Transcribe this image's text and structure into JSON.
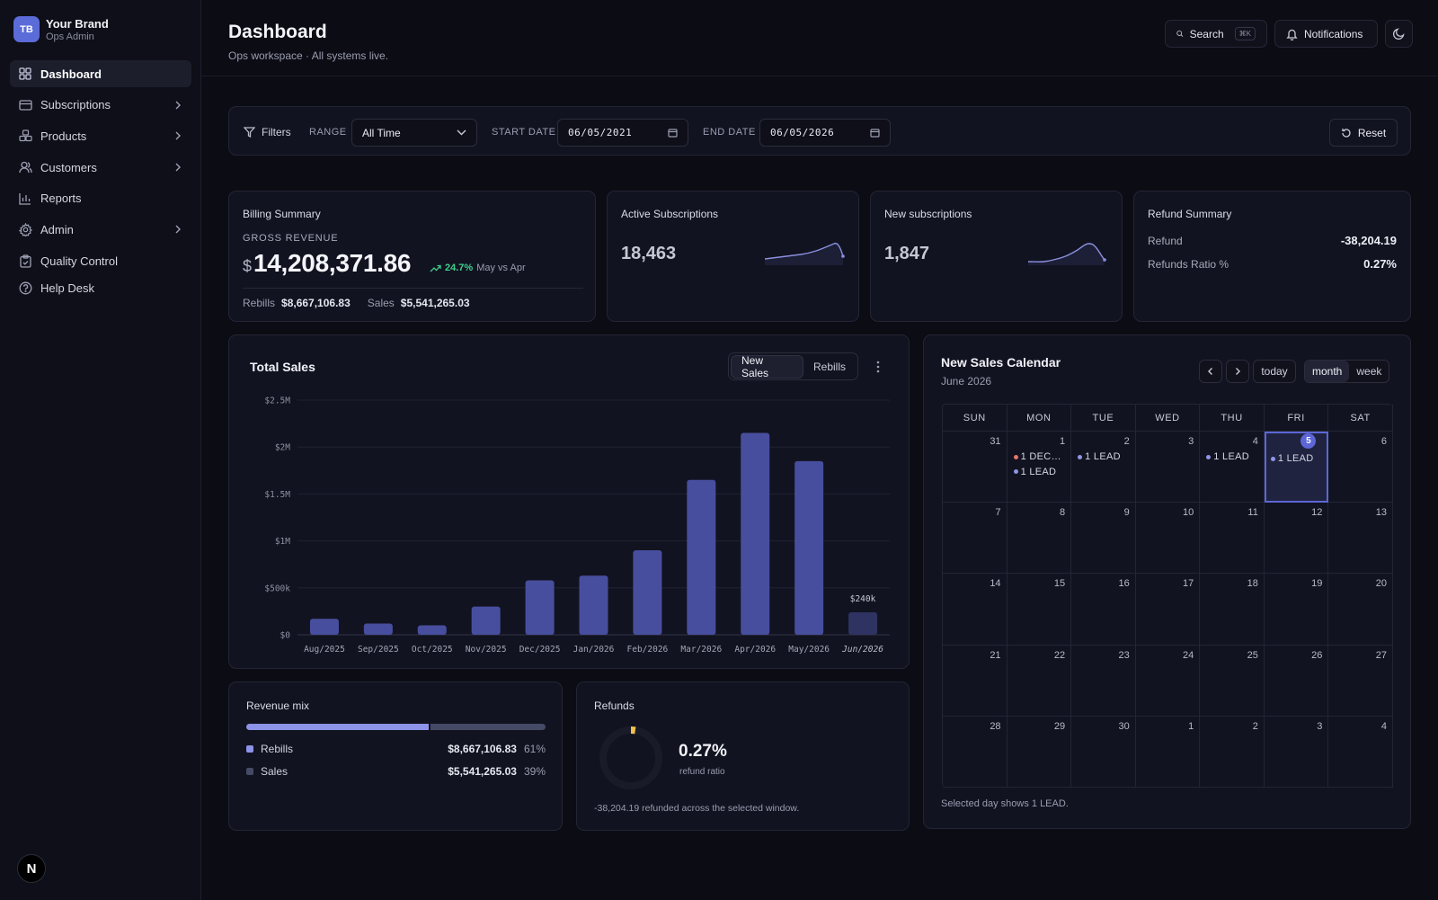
{
  "brand": {
    "logo": "TB",
    "name": "Your Brand",
    "role": "Ops Admin"
  },
  "sidebar": {
    "items": [
      {
        "label": "Dashboard",
        "icon": "dashboard-icon"
      },
      {
        "label": "Subscriptions",
        "icon": "card-icon"
      },
      {
        "label": "Products",
        "icon": "boxes-icon"
      },
      {
        "label": "Customers",
        "icon": "users-icon"
      },
      {
        "label": "Reports",
        "icon": "bar-chart-icon"
      },
      {
        "label": "Admin",
        "icon": "gear-icon"
      },
      {
        "label": "Quality Control",
        "icon": "clipboard-icon"
      },
      {
        "label": "Help Desk",
        "icon": "help-icon"
      }
    ],
    "footer_badge": "N"
  },
  "header": {
    "title": "Dashboard",
    "subtitle": "Ops workspace · All systems live.",
    "search_label": "Search",
    "search_shortcut": "⌘K",
    "notifications_label": "Notifications"
  },
  "filters": {
    "label": "Filters",
    "range_label": "RANGE",
    "range_value": "All Time",
    "start_label": "START DATE",
    "start_value": "06/05/2021",
    "end_label": "END DATE",
    "end_value": "06/05/2026",
    "reset_label": "Reset"
  },
  "billing": {
    "title": "Billing Summary",
    "gross_label": "GROSS REVENUE",
    "currency": "$",
    "gross_value": "14,208,371.86",
    "change": "24.7%",
    "change_note": "May vs Apr",
    "rebills_label": "Rebills",
    "rebills_value": "$8,667,106.83",
    "sales_label": "Sales",
    "sales_value": "$5,541,265.03"
  },
  "active_subs": {
    "title": "Active Subscriptions",
    "value": "18,463"
  },
  "new_subs": {
    "title": "New subscriptions",
    "value": "1,847"
  },
  "refund_summary": {
    "title": "Refund Summary",
    "refund_label": "Refund",
    "refund_value": "-38,204.19",
    "ratio_label": "Refunds Ratio %",
    "ratio_value": "0.27%"
  },
  "total_sales": {
    "title": "Total Sales",
    "tab_new": "New Sales",
    "tab_rebills": "Rebills"
  },
  "chart_data": {
    "type": "bar",
    "title": "Total Sales",
    "categories": [
      "Aug/2025",
      "Sep/2025",
      "Oct/2025",
      "Nov/2025",
      "Dec/2025",
      "Jan/2026",
      "Feb/2026",
      "Mar/2026",
      "Apr/2026",
      "May/2026",
      "Jun/2026"
    ],
    "values": [
      170000,
      120000,
      100000,
      300000,
      580000,
      630000,
      900000,
      1650000,
      2150000,
      1850000,
      240000
    ],
    "ylim": [
      0,
      2500000
    ],
    "yticks": [
      {
        "v": 0,
        "label": "$0"
      },
      {
        "v": 500000,
        "label": "$500k"
      },
      {
        "v": 1000000,
        "label": "$1M"
      },
      {
        "v": 1500000,
        "label": "$1.5M"
      },
      {
        "v": 2000000,
        "label": "$2M"
      },
      {
        "v": 2500000,
        "label": "$2.5M"
      }
    ],
    "annotations": [
      {
        "category": "Jun/2026",
        "label": "$240k"
      }
    ],
    "colors": {
      "bar": "#484e9e",
      "current": "#2f3362"
    },
    "grid": true
  },
  "calendar": {
    "title": "New Sales Calendar",
    "month": "June 2026",
    "today_label": "today",
    "month_label": "month",
    "week_label": "week",
    "weekdays": [
      "SUN",
      "MON",
      "TUE",
      "WED",
      "THU",
      "FRI",
      "SAT"
    ],
    "days": [
      "31",
      "1",
      "2",
      "3",
      "4",
      "5",
      "6",
      "7",
      "8",
      "9",
      "10",
      "11",
      "12",
      "13",
      "14",
      "15",
      "16",
      "17",
      "18",
      "19",
      "20",
      "21",
      "22",
      "23",
      "24",
      "25",
      "26",
      "27",
      "28",
      "29",
      "30",
      "1",
      "2",
      "3",
      "4"
    ],
    "selected_index": 5,
    "events": [
      {
        "day_index": 1,
        "items": [
          {
            "text": "1 DEC…",
            "color": "#e8756a"
          },
          {
            "text": "1 LEAD",
            "color": "#8f96e6"
          }
        ]
      },
      {
        "day_index": 2,
        "items": [
          {
            "text": "1 LEAD",
            "color": "#8f96e6"
          }
        ]
      },
      {
        "day_index": 4,
        "items": [
          {
            "text": "1 LEAD",
            "color": "#8f96e6"
          }
        ]
      },
      {
        "day_index": 5,
        "items": [
          {
            "text": "1 LEAD",
            "color": "#8f96e6"
          }
        ]
      }
    ],
    "footer": "Selected day shows 1 LEAD."
  },
  "revenue_mix": {
    "title": "Revenue mix",
    "rebills_label": "Rebills",
    "rebills_value": "$8,667,106.83",
    "rebills_pct": "61%",
    "rebills_fraction": 0.61,
    "sales_label": "Sales",
    "sales_value": "$5,541,265.03",
    "sales_pct": "39%",
    "colors": {
      "rebills": "#8c93e8",
      "sales": "#454a66"
    }
  },
  "refunds": {
    "title": "Refunds",
    "ratio": "0.27%",
    "ratio_fraction": 0.0027,
    "ratio_label": "refund ratio",
    "note": "-38,204.19 refunded across the selected window.",
    "color": "#f2c14e"
  }
}
